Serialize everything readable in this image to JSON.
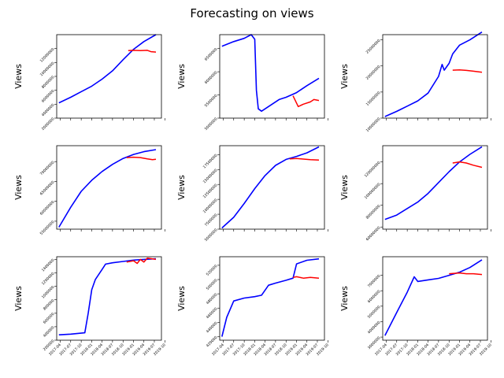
{
  "figure": {
    "title": "Forecasting on views"
  },
  "colors": {
    "actual": "#0000ff",
    "forecast": "#ff0000"
  },
  "chart_data": [
    {
      "type": "line",
      "ylabel": "Views",
      "xlim": [
        "2017-03-01",
        "2019-09-01"
      ],
      "yticks": [
        2000000,
        4000000,
        6000000,
        8000000,
        10000000,
        12000000
      ],
      "ylim": [
        2000000,
        14000000
      ],
      "series": [
        {
          "role": "actual",
          "x": [
            "2017-03-20",
            "2017-07-01",
            "2017-10-01",
            "2018-01-01",
            "2018-04-01",
            "2018-07-01",
            "2018-10-01",
            "2019-01-01",
            "2019-04-01",
            "2019-07-15"
          ],
          "y": [
            4200000,
            5000000,
            5800000,
            6600000,
            7600000,
            8800000,
            10400000,
            11900000,
            13000000,
            14000000
          ]
        },
        {
          "role": "forecast",
          "x": [
            "2018-11-15",
            "2019-01-01",
            "2019-03-01",
            "2019-05-01",
            "2019-06-01",
            "2019-07-15"
          ],
          "y": [
            11700000,
            11750000,
            11700000,
            11750000,
            11550000,
            11500000
          ]
        }
      ]
    },
    {
      "type": "line",
      "ylabel": "Views",
      "xlim": [
        "2017-03-01",
        "2019-09-01"
      ],
      "yticks": [
        5000000,
        5500000,
        6000000,
        6500000
      ],
      "ylim": [
        5000000,
        6800000
      ],
      "series": [
        {
          "role": "actual",
          "x": [
            "2017-03-20",
            "2017-07-01",
            "2017-10-01",
            "2017-12-01",
            "2018-01-01",
            "2018-01-15",
            "2018-02-01",
            "2018-03-01",
            "2018-05-01",
            "2018-08-01",
            "2018-10-01",
            "2019-01-01",
            "2019-04-01",
            "2019-07-15"
          ],
          "y": [
            6550000,
            6650000,
            6720000,
            6800000,
            6700000,
            5600000,
            5200000,
            5150000,
            5250000,
            5400000,
            5450000,
            5550000,
            5700000,
            5860000
          ]
        },
        {
          "role": "forecast",
          "x": [
            "2018-12-01",
            "2019-01-15",
            "2019-03-01",
            "2019-05-01",
            "2019-06-01",
            "2019-07-15"
          ],
          "y": [
            5480000,
            5250000,
            5300000,
            5350000,
            5400000,
            5380000
          ]
        }
      ]
    },
    {
      "type": "line",
      "ylabel": "Views",
      "xlim": [
        "2017-03-01",
        "2019-09-01"
      ],
      "yticks": [
        10000000,
        15000000,
        20000000,
        25000000
      ],
      "ylim": [
        10000000,
        26000000
      ],
      "series": [
        {
          "role": "actual",
          "x": [
            "2017-03-20",
            "2017-07-01",
            "2017-10-01",
            "2018-01-01",
            "2018-04-01",
            "2018-07-01",
            "2018-08-01",
            "2018-08-20",
            "2018-10-01",
            "2018-11-01",
            "2019-01-01",
            "2019-04-01",
            "2019-07-15"
          ],
          "y": [
            10300000,
            11300000,
            12300000,
            13300000,
            14800000,
            18000000,
            20300000,
            19200000,
            20500000,
            22300000,
            24000000,
            25000000,
            26500000
          ]
        },
        {
          "role": "forecast",
          "x": [
            "2018-11-01",
            "2019-01-01",
            "2019-03-01",
            "2019-05-01",
            "2019-07-15"
          ],
          "y": [
            19200000,
            19250000,
            19150000,
            19000000,
            18800000
          ]
        }
      ]
    },
    {
      "type": "line",
      "ylabel": "Views",
      "xlim": [
        "2017-03-01",
        "2019-09-01"
      ],
      "yticks": [
        55000000,
        60000000,
        65000000,
        70000000
      ],
      "ylim": [
        53000000,
        74000000
      ],
      "series": [
        {
          "role": "actual",
          "x": [
            "2017-03-20",
            "2017-07-01",
            "2017-10-01",
            "2018-01-01",
            "2018-04-01",
            "2018-07-01",
            "2018-10-01",
            "2019-01-01",
            "2019-04-01",
            "2019-07-15"
          ],
          "y": [
            53500000,
            58500000,
            62500000,
            65300000,
            67500000,
            69300000,
            70800000,
            71800000,
            72500000,
            73000000
          ]
        },
        {
          "role": "forecast",
          "x": [
            "2018-11-01",
            "2019-01-01",
            "2019-03-01",
            "2019-05-01",
            "2019-06-15",
            "2019-07-15"
          ],
          "y": [
            71000000,
            71100000,
            71000000,
            70700000,
            70500000,
            70600000
          ]
        }
      ]
    },
    {
      "type": "line",
      "ylabel": "Views",
      "xlim": [
        "2017-03-01",
        "2019-09-01"
      ],
      "yticks": [
        5000000,
        7500000,
        10000000,
        12500000,
        15000000,
        17500000
      ],
      "ylim": [
        5000000,
        19000000
      ],
      "series": [
        {
          "role": "actual",
          "x": [
            "2017-03-20",
            "2017-07-01",
            "2017-10-01",
            "2018-01-01",
            "2018-04-01",
            "2018-07-01",
            "2018-10-01",
            "2019-01-01",
            "2019-04-01",
            "2019-07-15"
          ],
          "y": [
            5200000,
            7000000,
            9300000,
            11800000,
            14000000,
            15700000,
            16700000,
            17200000,
            17800000,
            18800000
          ]
        },
        {
          "role": "forecast",
          "x": [
            "2018-11-01",
            "2019-01-01",
            "2019-03-01",
            "2019-05-01",
            "2019-07-15"
          ],
          "y": [
            16800000,
            16850000,
            16750000,
            16650000,
            16600000
          ]
        }
      ]
    },
    {
      "type": "line",
      "ylabel": "Views",
      "xlim": [
        "2017-03-01",
        "2019-09-01"
      ],
      "yticks": [
        60000000,
        80000000,
        100000000,
        120000000
      ],
      "ylim": [
        58000000,
        135000000
      ],
      "series": [
        {
          "role": "actual",
          "x": [
            "2017-03-20",
            "2017-07-01",
            "2017-10-01",
            "2018-01-01",
            "2018-04-01",
            "2018-07-01",
            "2018-10-01",
            "2019-01-01",
            "2019-04-01",
            "2019-07-15"
          ],
          "y": [
            67000000,
            71000000,
            77000000,
            83000000,
            91000000,
            101000000,
            111000000,
            120000000,
            127000000,
            134000000
          ]
        },
        {
          "role": "forecast",
          "x": [
            "2018-11-01",
            "2019-01-01",
            "2019-03-01",
            "2019-05-01",
            "2019-07-15"
          ],
          "y": [
            119000000,
            120000000,
            119000000,
            117000000,
            115000000
          ]
        }
      ]
    },
    {
      "type": "line",
      "ylabel": "Views",
      "xlim": [
        "2017-03-01",
        "2019-09-01"
      ],
      "yticks": [
        200000,
        400000,
        600000,
        800000,
        1000000,
        1200000,
        1400000
      ],
      "ylim": [
        200000,
        1440000
      ],
      "series": [
        {
          "role": "actual",
          "x": [
            "2017-03-20",
            "2017-07-01",
            "2017-11-01",
            "2017-12-01",
            "2018-01-01",
            "2018-02-01",
            "2018-04-01",
            "2018-05-01",
            "2018-07-01",
            "2018-10-01",
            "2019-01-01",
            "2019-04-01",
            "2019-07-15"
          ],
          "y": [
            280000,
            290000,
            310000,
            600000,
            950000,
            1100000,
            1250000,
            1330000,
            1350000,
            1370000,
            1390000,
            1400000,
            1410000
          ]
        },
        {
          "role": "forecast",
          "x": [
            "2018-11-01",
            "2019-01-01",
            "2019-02-01",
            "2019-03-01",
            "2019-04-01",
            "2019-05-01",
            "2019-07-15"
          ],
          "y": [
            1360000,
            1380000,
            1340000,
            1400000,
            1360000,
            1420000,
            1400000
          ]
        }
      ]
    },
    {
      "type": "line",
      "ylabel": "Views",
      "xlim": [
        "2017-03-01",
        "2019-09-01"
      ],
      "yticks": [
        420000,
        440000,
        460000,
        480000,
        500000,
        520000
      ],
      "ylim": [
        415000,
        532000
      ],
      "series": [
        {
          "role": "actual",
          "x": [
            "2017-03-20",
            "2017-05-01",
            "2017-07-01",
            "2017-10-01",
            "2018-01-01",
            "2018-03-01",
            "2018-05-01",
            "2018-07-01",
            "2018-10-01",
            "2018-12-01",
            "2019-01-01",
            "2019-04-01",
            "2019-07-15"
          ],
          "y": [
            420000,
            447000,
            470000,
            474000,
            476000,
            478000,
            492000,
            495000,
            499000,
            502000,
            522000,
            527000,
            529000
          ]
        },
        {
          "role": "forecast",
          "x": [
            "2018-12-01",
            "2019-01-01",
            "2019-03-01",
            "2019-05-01",
            "2019-07-15"
          ],
          "y": [
            503000,
            504000,
            502000,
            503000,
            502000
          ]
        }
      ]
    },
    {
      "type": "line",
      "ylabel": "Views",
      "xlim": [
        "2017-03-01",
        "2019-09-01"
      ],
      "yticks": [
        3000000,
        4000000,
        5000000,
        6000000,
        7000000
      ],
      "ylim": [
        2800000,
        8200000
      ],
      "series": [
        {
          "role": "actual",
          "x": [
            "2017-03-20",
            "2017-07-01",
            "2017-10-01",
            "2017-12-01",
            "2018-01-01",
            "2018-04-01",
            "2018-07-01",
            "2018-10-01",
            "2019-01-01",
            "2019-04-01",
            "2019-07-15"
          ],
          "y": [
            3100000,
            4600000,
            5900000,
            6900000,
            6600000,
            6700000,
            6800000,
            7000000,
            7200000,
            7500000,
            8000000
          ]
        },
        {
          "role": "forecast",
          "x": [
            "2018-10-01",
            "2019-01-01",
            "2019-03-01",
            "2019-05-01",
            "2019-07-15"
          ],
          "y": [
            7100000,
            7150000,
            7100000,
            7100000,
            7050000
          ]
        }
      ]
    }
  ],
  "xticklabels": [
    "2017-04",
    "2017-07",
    "2017-10",
    "2018-01",
    "2018-04",
    "2018-07",
    "2018-10",
    "2019-01",
    "2019-04",
    "2019-07",
    "2019-10"
  ],
  "xtick_dates": [
    "2017-04-01",
    "2017-07-01",
    "2017-10-01",
    "2018-01-01",
    "2018-04-01",
    "2018-07-01",
    "2018-10-01",
    "2019-01-01",
    "2019-04-01",
    "2019-07-01",
    "2019-10-01"
  ]
}
